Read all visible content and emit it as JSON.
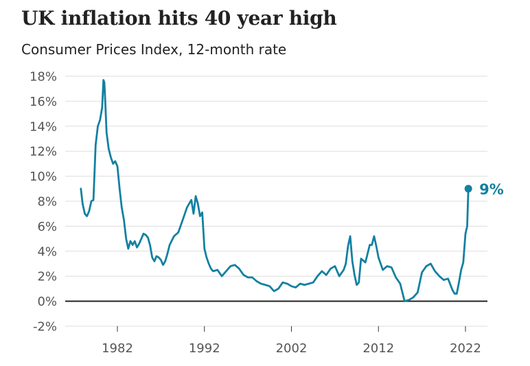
{
  "title": "UK inflation hits 40 year high",
  "subtitle": "Consumer Prices Index, 12-month rate",
  "colors": {
    "line": "#1380A1",
    "grid": "#dddddd",
    "zero_line": "#222222",
    "tick_text": "#555555"
  },
  "chart_data": {
    "type": "line",
    "title": "UK inflation hits 40 year high",
    "subtitle": "Consumer Prices Index, 12-month rate",
    "xlabel": "",
    "ylabel": "",
    "x_ticks": [
      1982,
      1992,
      2002,
      2012,
      2022
    ],
    "y_ticks": [
      -2,
      0,
      2,
      4,
      6,
      8,
      10,
      12,
      14,
      16,
      18
    ],
    "y_tick_labels": [
      "-2%",
      "0%",
      "2%",
      "4%",
      "6%",
      "8%",
      "10%",
      "12%",
      "14%",
      "16%",
      "18%"
    ],
    "xlim": [
      1976.5,
      2024.5
    ],
    "ylim": [
      -2,
      18
    ],
    "grid": true,
    "legend": "none",
    "end_label": "9%",
    "series": [
      {
        "x": [
          1977.8,
          1978.0,
          1978.25,
          1978.5,
          1978.75,
          1979.0,
          1979.25,
          1979.5,
          1979.75,
          1980.0,
          1980.25,
          1980.4,
          1980.5,
          1980.6,
          1980.75,
          1981.0,
          1981.25,
          1981.5,
          1981.75,
          1982.0,
          1982.25,
          1982.5,
          1982.75,
          1983.0,
          1983.25,
          1983.5,
          1983.75,
          1984.0,
          1984.25,
          1984.5,
          1984.75,
          1985.0,
          1985.25,
          1985.5,
          1985.75,
          1986.0,
          1986.25,
          1986.5,
          1986.75,
          1987.0,
          1987.25,
          1987.5,
          1987.75,
          1988.0,
          1988.5,
          1989.0,
          1989.5,
          1990.0,
          1990.5,
          1990.75,
          1991.0,
          1991.25,
          1991.5,
          1991.75,
          1992.0,
          1992.25,
          1992.5,
          1992.75,
          1993.0,
          1993.5,
          1994.0,
          1994.5,
          1995.0,
          1995.5,
          1996.0,
          1996.5,
          1997.0,
          1997.5,
          1998.0,
          1998.5,
          1999.0,
          1999.5,
          2000.0,
          2000.5,
          2001.0,
          2001.5,
          2002.0,
          2002.5,
          2003.0,
          2003.5,
          2004.0,
          2004.5,
          2005.0,
          2005.5,
          2006.0,
          2006.5,
          2007.0,
          2007.5,
          2008.0,
          2008.25,
          2008.5,
          2008.75,
          2009.0,
          2009.25,
          2009.5,
          2009.75,
          2010.0,
          2010.5,
          2011.0,
          2011.25,
          2011.5,
          2011.75,
          2012.0,
          2012.5,
          2013.0,
          2013.5,
          2014.0,
          2014.5,
          2015.0,
          2015.5,
          2016.0,
          2016.5,
          2017.0,
          2017.5,
          2018.0,
          2018.5,
          2019.0,
          2019.5,
          2020.0,
          2020.5,
          2020.75,
          2021.0,
          2021.25,
          2021.5,
          2021.75,
          2022.0,
          2022.2,
          2022.33
        ],
        "values": [
          9.0,
          7.8,
          7.0,
          6.8,
          7.2,
          8.0,
          8.1,
          12.5,
          14.0,
          14.5,
          15.5,
          17.7,
          17.5,
          16.0,
          13.5,
          12.2,
          11.5,
          11.0,
          11.2,
          10.8,
          9.0,
          7.5,
          6.5,
          5.0,
          4.2,
          4.8,
          4.5,
          4.8,
          4.3,
          4.6,
          5.0,
          5.4,
          5.3,
          5.1,
          4.5,
          3.5,
          3.2,
          3.6,
          3.5,
          3.3,
          2.9,
          3.2,
          3.8,
          4.5,
          5.2,
          5.5,
          6.5,
          7.5,
          8.1,
          7.0,
          8.4,
          7.8,
          6.8,
          7.1,
          4.2,
          3.5,
          3.0,
          2.6,
          2.4,
          2.5,
          2.0,
          2.4,
          2.8,
          2.9,
          2.6,
          2.1,
          1.9,
          1.9,
          1.6,
          1.4,
          1.3,
          1.2,
          0.8,
          1.0,
          1.5,
          1.4,
          1.2,
          1.1,
          1.4,
          1.3,
          1.4,
          1.5,
          2.0,
          2.4,
          2.1,
          2.6,
          2.8,
          2.0,
          2.5,
          3.0,
          4.4,
          5.2,
          3.2,
          2.1,
          1.3,
          1.5,
          3.4,
          3.1,
          4.5,
          4.5,
          5.2,
          4.4,
          3.5,
          2.5,
          2.8,
          2.7,
          1.9,
          1.4,
          0.0,
          0.1,
          0.3,
          0.7,
          2.3,
          2.8,
          3.0,
          2.4,
          2.0,
          1.7,
          1.8,
          0.9,
          0.6,
          0.6,
          1.5,
          2.5,
          3.1,
          5.4,
          6.0,
          9.0
        ]
      }
    ]
  }
}
